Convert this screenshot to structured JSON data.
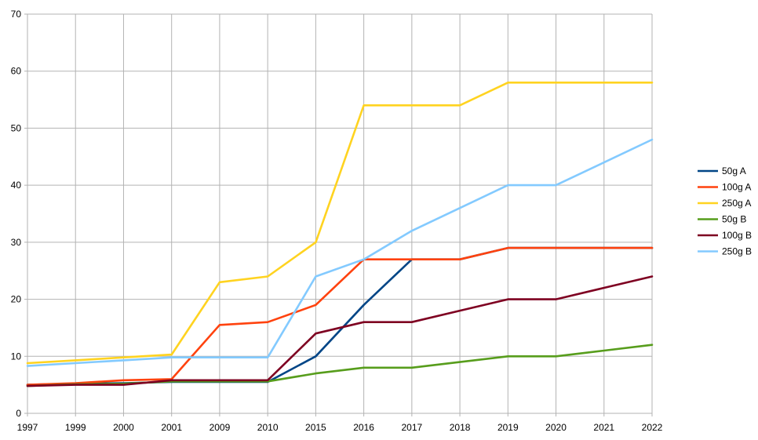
{
  "chart_data": {
    "type": "line",
    "title": "",
    "xlabel": "",
    "ylabel": "",
    "categories": [
      "1997",
      "1999",
      "2000",
      "2001",
      "2009",
      "2010",
      "2015",
      "2016",
      "2017",
      "2018",
      "2019",
      "2020",
      "2021",
      "2022"
    ],
    "ylim": [
      0,
      70
    ],
    "yticks": [
      0,
      10,
      20,
      30,
      40,
      50,
      60,
      70
    ],
    "grid": true,
    "legend_position": "right",
    "series": [
      {
        "name": "50g A",
        "color": "#004586",
        "values": [
          5,
          5.2,
          5.3,
          5.5,
          5.5,
          5.5,
          10,
          19,
          27,
          27,
          29,
          29,
          29,
          29
        ]
      },
      {
        "name": "100g A",
        "color": "#ff420e",
        "values": [
          5,
          5.3,
          5.8,
          6,
          15.5,
          16,
          19,
          27,
          27,
          27,
          29,
          29,
          29,
          29
        ]
      },
      {
        "name": "250g A",
        "color": "#ffd320",
        "values": [
          8.8,
          9.3,
          9.8,
          10.3,
          23,
          24,
          30,
          54,
          54,
          54,
          58,
          58,
          58,
          58
        ]
      },
      {
        "name": "50g B",
        "color": "#579d1c",
        "values": [
          4.8,
          5.1,
          5.2,
          5.6,
          5.6,
          5.6,
          7,
          8,
          8,
          9,
          10,
          10,
          11,
          12
        ]
      },
      {
        "name": "100g B",
        "color": "#7e0021",
        "values": [
          4.8,
          5,
          5,
          5.8,
          5.8,
          5.8,
          14,
          16,
          16,
          18,
          20,
          20,
          22,
          24
        ]
      },
      {
        "name": "250g B",
        "color": "#83caff",
        "values": [
          8.3,
          8.8,
          9.3,
          9.8,
          9.8,
          9.8,
          24,
          27,
          32,
          36,
          40,
          40,
          44,
          48
        ]
      }
    ]
  }
}
